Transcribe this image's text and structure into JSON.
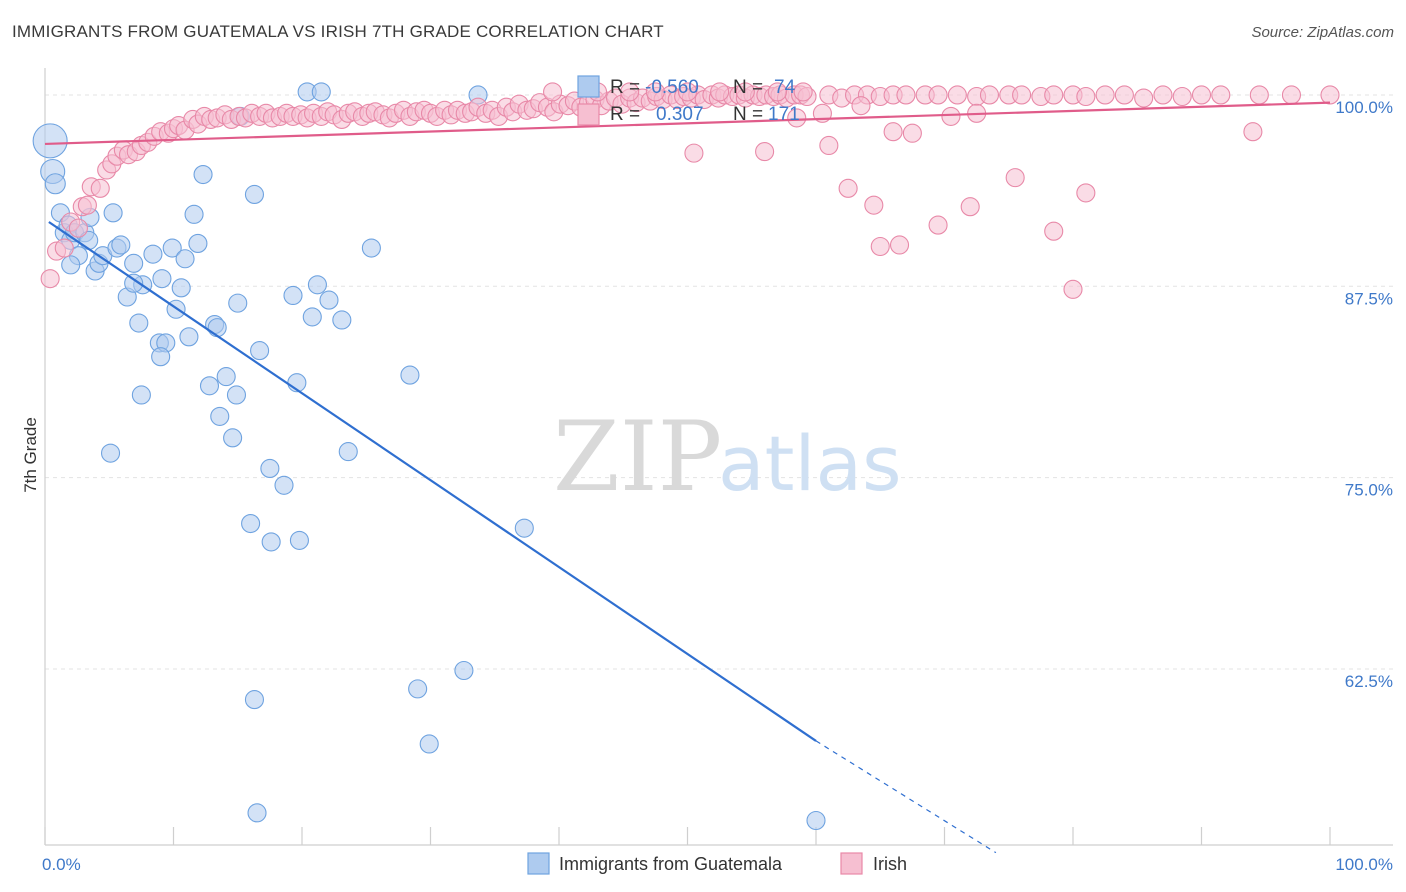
{
  "title": "IMMIGRANTS FROM GUATEMALA VS IRISH 7TH GRADE CORRELATION CHART",
  "source": "Source: ZipAtlas.com",
  "watermark": {
    "zip": "ZIP",
    "atlas": "atlas"
  },
  "chart_data": {
    "type": "scatter",
    "ylabel": "7th Grade",
    "xlim": [
      0,
      100
    ],
    "ylim": [
      51,
      101.5
    ],
    "x_tick_labels": [
      "0.0%",
      "100.0%"
    ],
    "y_ticks": [
      {
        "value": 100,
        "label": "100.0%"
      },
      {
        "value": 87.5,
        "label": "87.5%"
      },
      {
        "value": 75,
        "label": "75.0%"
      },
      {
        "value": 62.5,
        "label": "62.5%"
      }
    ],
    "legend": {
      "rows": [
        {
          "r_label": "R =",
          "r_value": "-0.560",
          "n_label": "N =",
          "n_value": "74"
        },
        {
          "r_label": "R =",
          "r_value": "0.307",
          "n_label": "N =",
          "n_value": "171"
        }
      ]
    },
    "series": [
      {
        "name": "Immigrants from Guatemala",
        "color": "#6fa3e0",
        "fill": "#aecbef",
        "line_color": "#2f6fd0",
        "trend": {
          "x0": 0.3,
          "y0": 91.7,
          "x1": 60,
          "y1": 57.8,
          "dash_to_x": 74,
          "dash_to_y": 50.5
        },
        "points": [
          [
            0.4,
            97.0
          ],
          [
            0.6,
            95.0
          ],
          [
            0.8,
            94.2
          ],
          [
            1.2,
            92.3
          ],
          [
            1.5,
            91.0
          ],
          [
            1.8,
            91.5
          ],
          [
            2.0,
            90.5
          ],
          [
            2.3,
            91.0
          ],
          [
            2.6,
            89.5
          ],
          [
            3.1,
            91.0
          ],
          [
            3.5,
            92.0
          ],
          [
            3.9,
            88.5
          ],
          [
            4.2,
            89.0
          ],
          [
            4.5,
            89.5
          ],
          [
            5.3,
            92.3
          ],
          [
            5.6,
            90.0
          ],
          [
            5.9,
            90.2
          ],
          [
            6.4,
            86.8
          ],
          [
            6.9,
            89.0
          ],
          [
            7.3,
            85.1
          ],
          [
            7.6,
            87.6
          ],
          [
            8.4,
            89.6
          ],
          [
            8.9,
            83.8
          ],
          [
            9.1,
            88.0
          ],
          [
            9.4,
            83.8
          ],
          [
            9.9,
            90.0
          ],
          [
            10.2,
            86.0
          ],
          [
            10.6,
            87.4
          ],
          [
            10.9,
            89.3
          ],
          [
            11.2,
            84.2
          ],
          [
            11.6,
            92.2
          ],
          [
            11.9,
            90.3
          ],
          [
            12.3,
            94.8
          ],
          [
            12.8,
            81.0
          ],
          [
            13.2,
            85.0
          ],
          [
            13.4,
            84.8
          ],
          [
            13.6,
            79.0
          ],
          [
            14.1,
            81.6
          ],
          [
            14.6,
            77.6
          ],
          [
            14.9,
            80.4
          ],
          [
            15.2,
            98.6
          ],
          [
            15.0,
            86.4
          ],
          [
            16.3,
            93.5
          ],
          [
            16.7,
            83.3
          ],
          [
            17.5,
            75.6
          ],
          [
            16.0,
            72.0
          ],
          [
            17.6,
            70.8
          ],
          [
            18.6,
            74.5
          ],
          [
            19.3,
            86.9
          ],
          [
            19.6,
            81.2
          ],
          [
            19.8,
            70.9
          ],
          [
            20.4,
            100.2
          ],
          [
            20.8,
            85.5
          ],
          [
            21.2,
            87.6
          ],
          [
            21.5,
            100.2
          ],
          [
            22.1,
            86.6
          ],
          [
            23.1,
            85.3
          ],
          [
            23.6,
            76.7
          ],
          [
            25.4,
            90.0
          ],
          [
            29.0,
            61.2
          ],
          [
            29.9,
            57.6
          ],
          [
            28.4,
            81.7
          ],
          [
            32.6,
            62.4
          ],
          [
            33.7,
            100.0
          ],
          [
            37.3,
            71.7
          ],
          [
            16.3,
            60.5
          ],
          [
            16.5,
            53.1
          ],
          [
            60.0,
            52.6
          ],
          [
            5.1,
            76.6
          ],
          [
            3.4,
            90.5
          ],
          [
            7.5,
            80.4
          ],
          [
            9.0,
            82.9
          ],
          [
            2.0,
            88.9
          ],
          [
            6.9,
            87.7
          ]
        ]
      },
      {
        "name": "Irish",
        "color": "#e889a8",
        "fill": "#f6bfd1",
        "line_color": "#e05c8a",
        "trend": {
          "x0": 0,
          "y0": 96.8,
          "x1": 100,
          "y1": 99.5
        },
        "points": [
          [
            0.4,
            88.0
          ],
          [
            0.9,
            89.8
          ],
          [
            1.5,
            90.0
          ],
          [
            2.0,
            91.7
          ],
          [
            2.6,
            91.3
          ],
          [
            2.9,
            92.7
          ],
          [
            3.3,
            92.8
          ],
          [
            3.6,
            94.0
          ],
          [
            4.3,
            93.9
          ],
          [
            4.8,
            95.1
          ],
          [
            5.2,
            95.5
          ],
          [
            5.6,
            96.0
          ],
          [
            6.1,
            96.4
          ],
          [
            6.5,
            96.1
          ],
          [
            7.1,
            96.3
          ],
          [
            7.5,
            96.7
          ],
          [
            8.0,
            96.9
          ],
          [
            8.5,
            97.3
          ],
          [
            9.0,
            97.6
          ],
          [
            9.6,
            97.5
          ],
          [
            10.0,
            97.8
          ],
          [
            10.4,
            98.0
          ],
          [
            10.9,
            97.7
          ],
          [
            11.5,
            98.4
          ],
          [
            11.9,
            98.1
          ],
          [
            12.4,
            98.6
          ],
          [
            12.9,
            98.4
          ],
          [
            13.4,
            98.5
          ],
          [
            14.0,
            98.7
          ],
          [
            14.5,
            98.4
          ],
          [
            15.1,
            98.6
          ],
          [
            15.6,
            98.5
          ],
          [
            16.1,
            98.8
          ],
          [
            16.7,
            98.6
          ],
          [
            17.2,
            98.8
          ],
          [
            17.7,
            98.5
          ],
          [
            18.3,
            98.6
          ],
          [
            18.8,
            98.8
          ],
          [
            19.3,
            98.6
          ],
          [
            19.9,
            98.7
          ],
          [
            20.4,
            98.5
          ],
          [
            20.9,
            98.8
          ],
          [
            21.5,
            98.6
          ],
          [
            22.0,
            98.9
          ],
          [
            22.5,
            98.7
          ],
          [
            23.1,
            98.4
          ],
          [
            23.6,
            98.8
          ],
          [
            24.1,
            98.9
          ],
          [
            24.7,
            98.6
          ],
          [
            25.2,
            98.8
          ],
          [
            25.7,
            98.9
          ],
          [
            26.3,
            98.7
          ],
          [
            26.8,
            98.5
          ],
          [
            27.3,
            98.8
          ],
          [
            27.9,
            99.0
          ],
          [
            28.4,
            98.6
          ],
          [
            28.9,
            98.9
          ],
          [
            29.5,
            99.0
          ],
          [
            30.0,
            98.8
          ],
          [
            30.5,
            98.6
          ],
          [
            31.1,
            99.0
          ],
          [
            31.6,
            98.7
          ],
          [
            32.1,
            99.0
          ],
          [
            32.7,
            98.8
          ],
          [
            33.2,
            98.9
          ],
          [
            33.7,
            99.2
          ],
          [
            34.3,
            98.8
          ],
          [
            34.8,
            99.0
          ],
          [
            35.3,
            98.6
          ],
          [
            35.9,
            99.2
          ],
          [
            36.4,
            98.9
          ],
          [
            36.9,
            99.4
          ],
          [
            37.5,
            99.0
          ],
          [
            38.0,
            99.1
          ],
          [
            38.5,
            99.5
          ],
          [
            39.1,
            99.2
          ],
          [
            39.6,
            98.9
          ],
          [
            40.1,
            99.4
          ],
          [
            40.7,
            99.3
          ],
          [
            41.2,
            99.6
          ],
          [
            41.7,
            99.2
          ],
          [
            42.3,
            99.5
          ],
          [
            42.8,
            99.7
          ],
          [
            43.3,
            99.3
          ],
          [
            43.9,
            99.6
          ],
          [
            44.4,
            99.8
          ],
          [
            44.9,
            99.4
          ],
          [
            45.5,
            99.8
          ],
          [
            46.0,
            99.5
          ],
          [
            46.5,
            99.8
          ],
          [
            47.1,
            99.6
          ],
          [
            47.6,
            99.9
          ],
          [
            48.1,
            99.7
          ],
          [
            48.7,
            100.0
          ],
          [
            49.2,
            99.7
          ],
          [
            49.7,
            99.9
          ],
          [
            50.3,
            99.8
          ],
          [
            50.8,
            100.0
          ],
          [
            51.3,
            99.7
          ],
          [
            51.9,
            100.0
          ],
          [
            52.4,
            99.8
          ],
          [
            52.9,
            100.0
          ],
          [
            53.5,
            99.9
          ],
          [
            54.0,
            100.0
          ],
          [
            54.5,
            99.8
          ],
          [
            55.1,
            100.0
          ],
          [
            55.6,
            99.9
          ],
          [
            56.1,
            100.0
          ],
          [
            56.7,
            99.9
          ],
          [
            57.2,
            100.0
          ],
          [
            57.7,
            99.8
          ],
          [
            58.3,
            100.0
          ],
          [
            58.8,
            100.0
          ],
          [
            59.3,
            99.9
          ],
          [
            61.0,
            100.0
          ],
          [
            62.0,
            99.8
          ],
          [
            63.0,
            100.0
          ],
          [
            64.0,
            100.0
          ],
          [
            65.0,
            99.9
          ],
          [
            66.0,
            100.0
          ],
          [
            67.0,
            100.0
          ],
          [
            68.5,
            100.0
          ],
          [
            69.5,
            100.0
          ],
          [
            71.0,
            100.0
          ],
          [
            72.5,
            99.9
          ],
          [
            73.5,
            100.0
          ],
          [
            75.0,
            100.0
          ],
          [
            76.0,
            100.0
          ],
          [
            77.5,
            99.9
          ],
          [
            78.5,
            100.0
          ],
          [
            80.0,
            100.0
          ],
          [
            81.0,
            99.9
          ],
          [
            82.5,
            100.0
          ],
          [
            84.0,
            100.0
          ],
          [
            85.5,
            99.8
          ],
          [
            87.0,
            100.0
          ],
          [
            88.5,
            99.9
          ],
          [
            90.0,
            100.0
          ],
          [
            91.5,
            100.0
          ],
          [
            94.5,
            100.0
          ],
          [
            97.0,
            100.0
          ],
          [
            100.0,
            100.0
          ],
          [
            50.5,
            96.2
          ],
          [
            56.0,
            96.3
          ],
          [
            58.5,
            98.5
          ],
          [
            60.5,
            98.8
          ],
          [
            61.0,
            96.7
          ],
          [
            62.5,
            93.9
          ],
          [
            63.5,
            99.3
          ],
          [
            64.5,
            92.8
          ],
          [
            65.0,
            90.1
          ],
          [
            66.0,
            97.6
          ],
          [
            66.5,
            90.2
          ],
          [
            67.5,
            97.5
          ],
          [
            69.5,
            91.5
          ],
          [
            70.5,
            98.6
          ],
          [
            72.5,
            98.8
          ],
          [
            72.0,
            92.7
          ],
          [
            75.5,
            94.6
          ],
          [
            78.5,
            91.1
          ],
          [
            80.0,
            87.3
          ],
          [
            81.0,
            93.6
          ],
          [
            94.0,
            97.6
          ],
          [
            59.0,
            100.2
          ],
          [
            39.5,
            100.2
          ],
          [
            43.0,
            100.2
          ],
          [
            45.5,
            100.2
          ],
          [
            47.5,
            100.2
          ],
          [
            50.0,
            100.2
          ],
          [
            52.5,
            100.2
          ],
          [
            54.5,
            100.2
          ],
          [
            57.0,
            100.2
          ]
        ]
      }
    ]
  }
}
